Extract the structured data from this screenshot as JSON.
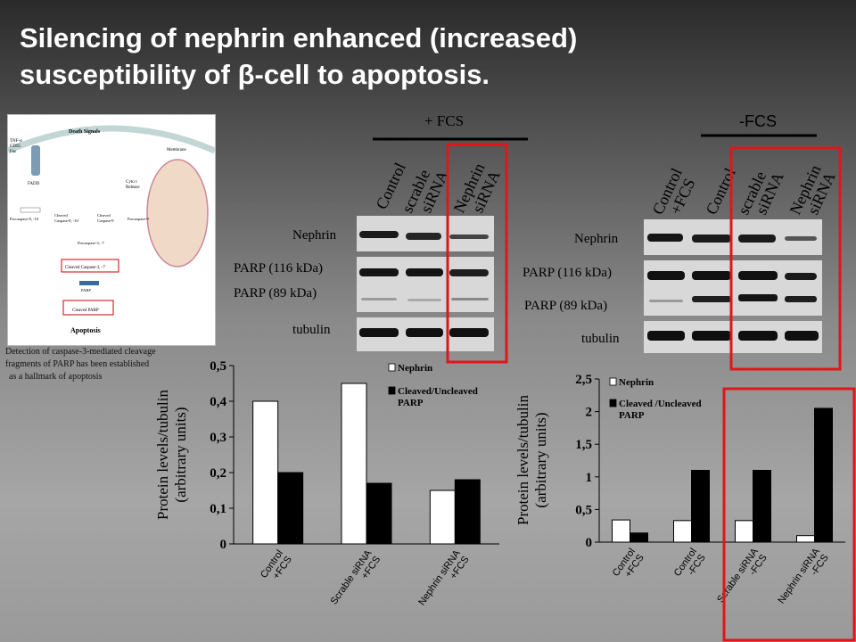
{
  "slide": {
    "title_line1": "Silencing of nephrin enhanced (increased)",
    "title_line2": "susceptibility of β-cell to apoptosis.",
    "caption_line1": "Detection of caspase-3-mediated cleavage",
    "caption_line2": "fragments of PARP has been established",
    "caption_line3": "as a hallmark of apoptosis"
  },
  "pathway": {
    "death_signals": "Death Signals",
    "receptors": "TNF-α\nCD95\nFas",
    "membrane": "Membrane",
    "fadd": "FADD",
    "cytc": "Cyto c\nRelease",
    "procasp810": "Procaspase-8, -10",
    "cleaved810": "Cleaved\nCaspase-8, -10",
    "cleaved9": "Cleaved\nCaspase-9",
    "procasp9": "Procaspase-9",
    "procasp37": "Procaspase-3, -7",
    "cleaved37": "Cleaved Caspase-3, -7",
    "parp": "PARP",
    "cleaved_parp": "Cleaved PARP",
    "apoptosis": "Apoptosis"
  },
  "blot_left": {
    "condition": "+ FCS",
    "lanes": [
      {
        "line1": "Control",
        "line2": ""
      },
      {
        "line1": "scrable",
        "line2": "siRNA"
      },
      {
        "line1": "Nephrin",
        "line2": "siRNA"
      }
    ],
    "rows": [
      "Nephrin",
      "PARP (116 kDa)",
      "PARP (89 kDa)",
      "tubulin"
    ]
  },
  "blot_right": {
    "condition": "-FCS",
    "lanes": [
      {
        "line1": "Control",
        "line2": "+FCS"
      },
      {
        "line1": "Control",
        "line2": ""
      },
      {
        "line1": "scrable",
        "line2": "siRNA"
      },
      {
        "line1": "Nephrin",
        "line2": "siRNA"
      }
    ],
    "rows": [
      "Nephrin",
      "PARP (116 kDa)",
      "PARP (89 kDa)",
      "tubulin"
    ]
  },
  "chart_data": [
    {
      "type": "bar",
      "categories": [
        {
          "line1": "Control",
          "line2": "+FCS"
        },
        {
          "line1": "Scrable  siRNA",
          "line2": "+FCS"
        },
        {
          "line1": "Nephrin  siRNA",
          "line2": "+FCS"
        }
      ],
      "series": [
        {
          "name": "Nephrin",
          "color": "#ffffff",
          "values": [
            0.4,
            0.45,
            0.15
          ]
        },
        {
          "name": "Cleaved/Uncleaved PARP",
          "name_line1": "Cleaved/Uncleaved",
          "name_line2": "PARP",
          "color": "#000000",
          "values": [
            0.2,
            0.17,
            0.18
          ]
        }
      ],
      "ylabel_line1": "Protein levels/tubulin",
      "ylabel_line2": "(arbitrary units)",
      "ylim": [
        0,
        0.5
      ],
      "yticks": [
        "0",
        "0,1",
        "0,2",
        "0,3",
        "0,4",
        "0,5"
      ],
      "grid": false,
      "legend": "top-right"
    },
    {
      "type": "bar",
      "categories": [
        {
          "line1": "Control",
          "line2": "+FCS"
        },
        {
          "line1": "Control",
          "line2": "-FCS"
        },
        {
          "line1": "Scrable  siRNA",
          "line2": "-FCS"
        },
        {
          "line1": "Nephrin  siRNA",
          "line2": "-FCS"
        }
      ],
      "series": [
        {
          "name": "Nephrin",
          "color": "#ffffff",
          "values": [
            0.34,
            0.33,
            0.33,
            0.1
          ]
        },
        {
          "name": "Cleaved /Uncleaved PARP",
          "name_line1": "Cleaved /Uncleaved",
          "name_line2": "PARP",
          "color": "#000000",
          "values": [
            0.14,
            1.1,
            1.1,
            2.05
          ]
        }
      ],
      "ylabel_line1": "Protein levels/tubulin",
      "ylabel_line2": "(arbitrary units)",
      "ylim": [
        0,
        2.5
      ],
      "yticks": [
        "0",
        "0,5",
        "1",
        "1,5",
        "2",
        "2,5"
      ],
      "grid": false,
      "legend": "top-left"
    }
  ],
  "colors": {
    "highlight": "#e0161b",
    "band": "#1a1a1a",
    "blot_bg": "#d8d8d8"
  }
}
